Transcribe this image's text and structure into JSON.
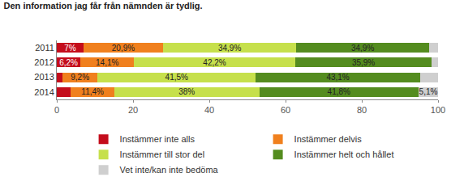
{
  "chart_data": {
    "type": "bar",
    "title": "Den information jag får från nämnden är tydlig.",
    "orientation": "horizontal",
    "stacked": true,
    "data_labels": true,
    "grid": false,
    "legend": "bottom",
    "categories": [
      "2011",
      "2012",
      "2013",
      "2014"
    ],
    "xlim": [
      0,
      100
    ],
    "xticks": [
      0,
      20,
      40,
      60,
      80,
      100
    ],
    "series": [
      {
        "name": "Instämmer inte alls",
        "color": "#c40d1c",
        "values": [
          7,
          6.2,
          1.5,
          3.7
        ],
        "value_labels": [
          "7%",
          "6,2%",
          null,
          null
        ]
      },
      {
        "name": "Instämmer delvis",
        "color": "#f0801e",
        "values": [
          20.9,
          14.1,
          9.2,
          11.4
        ],
        "value_labels": [
          "20,9%",
          "14,1%",
          "9,2%",
          "11,4%"
        ]
      },
      {
        "name": "Instämmer till stor del",
        "color": "#c6e04c",
        "values": [
          34.9,
          42.2,
          41.5,
          38
        ],
        "value_labels": [
          "34,9%",
          "42,2%",
          "41,5%",
          "38%"
        ]
      },
      {
        "name": "Instämmer helt och hållet",
        "color": "#548c1f",
        "values": [
          34.9,
          35.9,
          43.1,
          41.8
        ],
        "value_labels": [
          "34,9%",
          "35,9%",
          "43,1%",
          "41,8%"
        ]
      },
      {
        "name": "Vet inte/kan inte bedöma",
        "color": "#cfcfcf",
        "values": [
          2.3,
          1.6,
          4.7,
          5.1
        ],
        "value_labels": [
          null,
          null,
          null,
          "5,1%"
        ]
      }
    ]
  }
}
